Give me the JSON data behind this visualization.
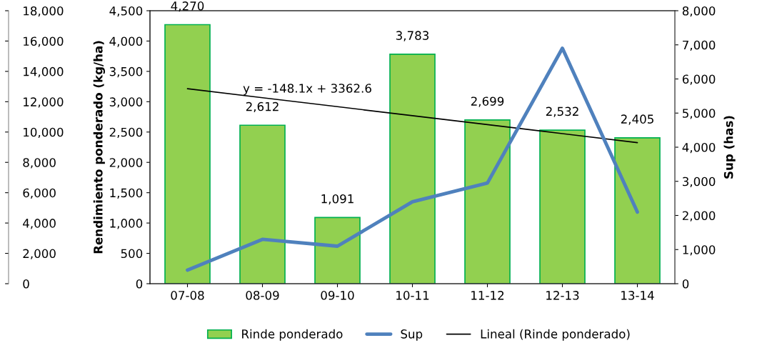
{
  "chart_data": {
    "type": "bar",
    "categories": [
      "07-08",
      "08-09",
      "09-10",
      "10-11",
      "11-12",
      "12-13",
      "13-14"
    ],
    "ylabel": "Rendimiento ponderado (kg/ha)",
    "y2label": "Sup (has)",
    "ylim": [
      0,
      4500
    ],
    "yticks": [
      0,
      {
        "value": 500,
        "label": "500"
      },
      {
        "value": 1000,
        "label": "1,000"
      },
      {
        "value": 1500,
        "label": "1,500"
      },
      {
        "value": 2000,
        "label": "2,000"
      },
      {
        "value": 2500,
        "label": "2,500"
      },
      {
        "value": 3000,
        "label": "3,000"
      },
      {
        "value": 3500,
        "label": "3,500"
      },
      {
        "value": 4000,
        "label": "4,000"
      },
      {
        "value": 4500,
        "label": "4,500"
      }
    ],
    "y2lim": [
      0,
      8000
    ],
    "y2ticks": [
      0,
      {
        "value": 1000,
        "label": "1,000"
      },
      {
        "value": 2000,
        "label": "2,000"
      },
      {
        "value": 3000,
        "label": "3,000"
      },
      {
        "value": 4000,
        "label": "4,000"
      },
      {
        "value": 5000,
        "label": "5,000"
      },
      {
        "value": 6000,
        "label": "6,000"
      },
      {
        "value": 7000,
        "label": "7,000"
      },
      {
        "value": 8000,
        "label": "8,000"
      }
    ],
    "y3lim": [
      0,
      18000
    ],
    "y3ticks": [
      0,
      {
        "value": 2000,
        "label": "2,000"
      },
      {
        "value": 4000,
        "label": "4,000"
      },
      {
        "value": 6000,
        "label": "6,000"
      },
      {
        "value": 8000,
        "label": "8,000"
      },
      {
        "value": 10000,
        "label": "10,000"
      },
      {
        "value": 12000,
        "label": "12,000"
      },
      {
        "value": 14000,
        "label": "14,000"
      },
      {
        "value": 16000,
        "label": "16,000"
      },
      {
        "value": 18000,
        "label": "18,000"
      }
    ],
    "series": [
      {
        "name": "Rinde ponderado",
        "color": "#92d050",
        "values": [
          4270,
          2612,
          1091,
          3783,
          2699,
          2532,
          2405
        ],
        "value_labels": [
          "4,270",
          "2,612",
          "1,091",
          "3,783",
          "2,699",
          "2,532",
          "2,405"
        ]
      },
      {
        "name": "Sup",
        "type": "line",
        "axis": "y2",
        "color": "#4f81bd",
        "values": [
          400,
          1300,
          1100,
          2400,
          2950,
          6900,
          2100
        ]
      },
      {
        "name": "Lineal (Rinde ponderado)",
        "type": "line",
        "color": "#000000",
        "values": [
          3215,
          3066,
          2918,
          2770,
          2622,
          2474,
          2326
        ]
      }
    ],
    "annotations": [
      "y = -148.1x + 3362.6"
    ],
    "legend": "bottom",
    "grid": false
  }
}
